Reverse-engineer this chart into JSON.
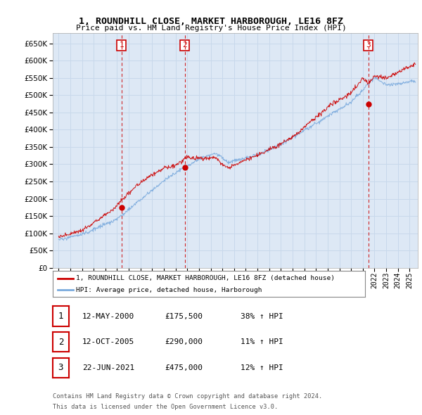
{
  "title": "1, ROUNDHILL CLOSE, MARKET HARBOROUGH, LE16 8FZ",
  "subtitle": "Price paid vs. HM Land Registry's House Price Index (HPI)",
  "legend_label_red": "1, ROUNDHILL CLOSE, MARKET HARBOROUGH, LE16 8FZ (detached house)",
  "legend_label_blue": "HPI: Average price, detached house, Harborough",
  "footer_line1": "Contains HM Land Registry data © Crown copyright and database right 2024.",
  "footer_line2": "This data is licensed under the Open Government Licence v3.0.",
  "transactions": [
    {
      "num": 1,
      "date": "12-MAY-2000",
      "price": "£175,500",
      "change": "38% ↑ HPI",
      "year": 2000.37
    },
    {
      "num": 2,
      "date": "12-OCT-2005",
      "price": "£290,000",
      "change": "11% ↑ HPI",
      "year": 2005.78
    },
    {
      "num": 3,
      "date": "22-JUN-2021",
      "price": "£475,000",
      "change": "12% ↑ HPI",
      "year": 2021.47
    }
  ],
  "ylim": [
    0,
    680000
  ],
  "yticks": [
    0,
    50000,
    100000,
    150000,
    200000,
    250000,
    300000,
    350000,
    400000,
    450000,
    500000,
    550000,
    600000,
    650000
  ],
  "background_color": "#dde8f5",
  "grid_color": "#c8d8eb",
  "red_color": "#cc0000",
  "blue_color": "#7aaadd"
}
